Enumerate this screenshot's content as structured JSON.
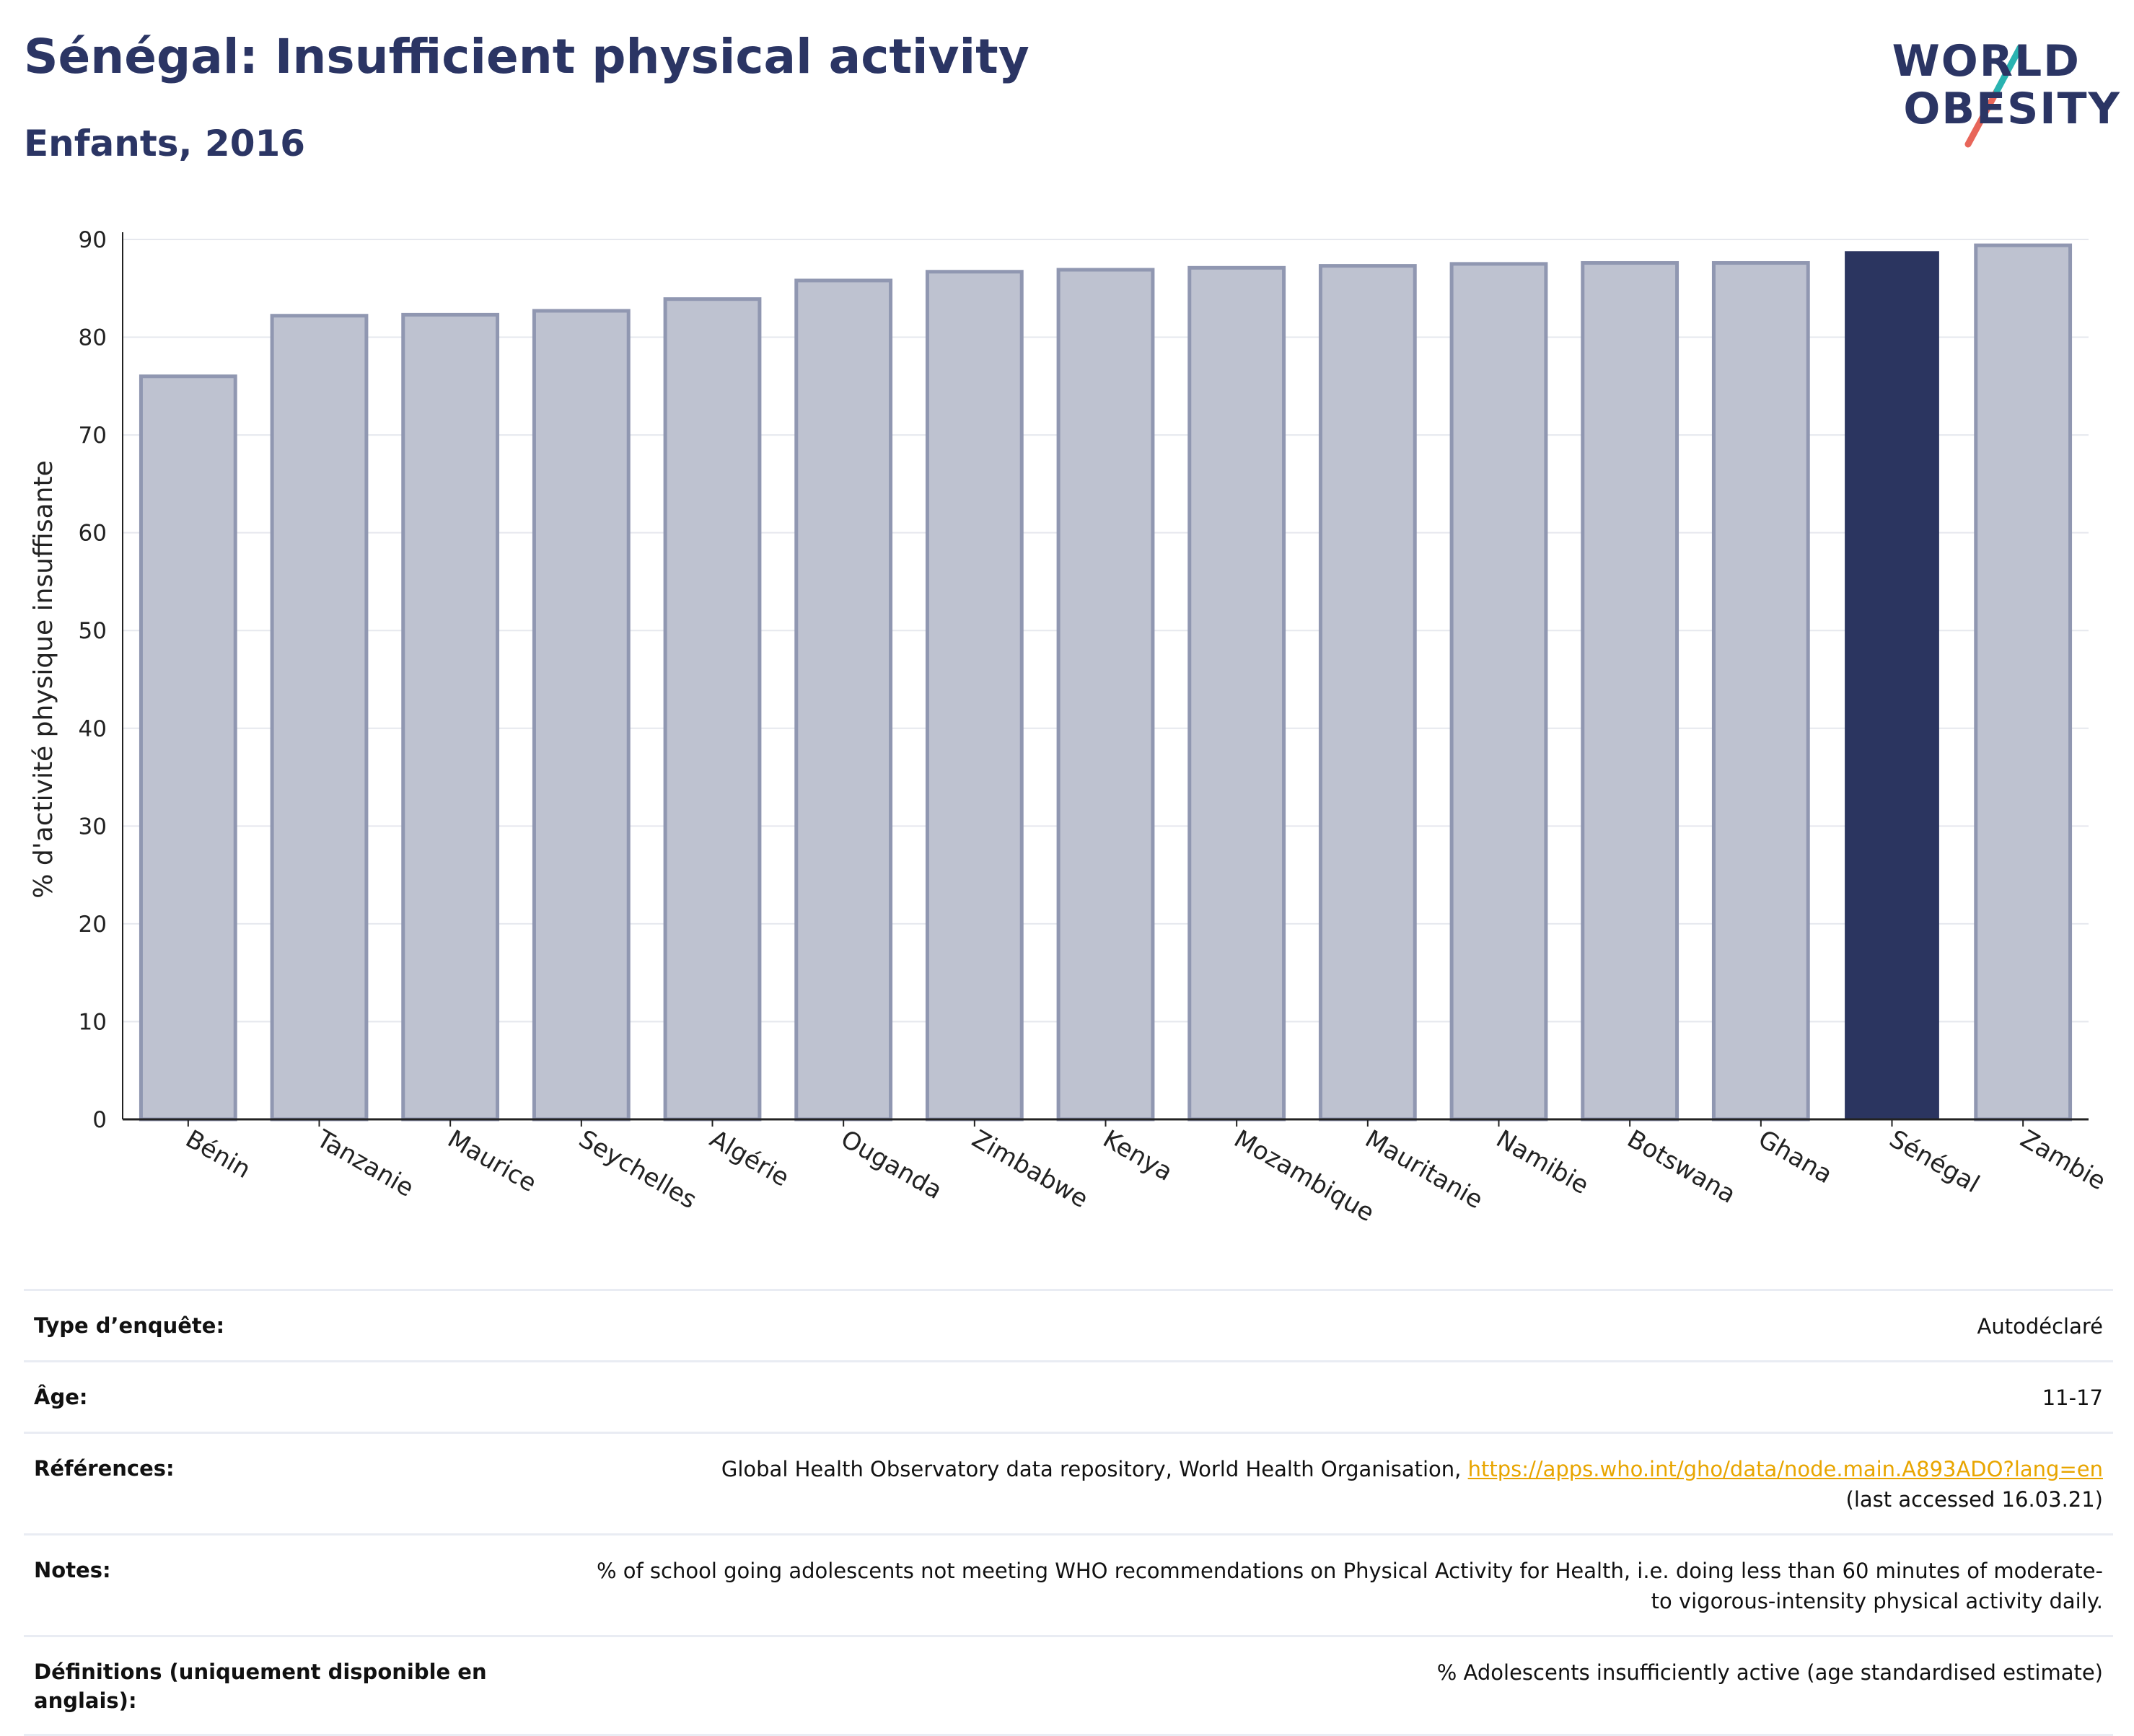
{
  "header": {
    "title": "Sénégal: Insufficient physical activity",
    "subtitle": "Enfants, 2016"
  },
  "logo": {
    "line1": "WORLD",
    "line2": "OBESITY",
    "colors": {
      "text": "#2b3564",
      "slash_teal": "#2ab3b1",
      "slash_coral": "#e8665a"
    }
  },
  "colors": {
    "bar": "#bec2d0",
    "bar_border": "#9097b1",
    "highlight": "#2b3560",
    "grid": "#e6e8ee",
    "axis": "#222222"
  },
  "chart_data": {
    "type": "bar",
    "categories": [
      "Bénin",
      "Tanzanie",
      "Maurice",
      "Seychelles",
      "Algérie",
      "Ouganda",
      "Zimbabwe",
      "Kenya",
      "Mozambique",
      "Mauritanie",
      "Namibie",
      "Botswana",
      "Ghana",
      "Sénégal",
      "Zambie"
    ],
    "values": [
      76.0,
      82.2,
      82.3,
      82.7,
      83.9,
      85.8,
      86.7,
      86.9,
      87.1,
      87.3,
      87.5,
      87.6,
      87.6,
      88.8,
      89.4
    ],
    "highlight": "Sénégal",
    "ylabel": "% d'activité physique insuffisante",
    "ylim": [
      0,
      90
    ],
    "yticks": [
      0,
      10,
      20,
      30,
      40,
      50,
      60,
      70,
      80,
      90
    ],
    "grid": true,
    "legend": "none"
  },
  "info": [
    {
      "label": "Type d’enquête:",
      "value": "Autodéclaré"
    },
    {
      "label": "Âge:",
      "value": "11-17"
    },
    {
      "label": "Références:",
      "value": "Global Health Observatory data repository, World Health Organisation, ",
      "link": "https://apps.who.int/gho/data/node.main.A893ADO?lang=en",
      "after": "(last accessed 16.03.21)"
    },
    {
      "label": "Notes:",
      "value": "% of school going adolescents not meeting WHO recommendations on Physical Activity for Health, i.e. doing less than 60 minutes of moderate- to vigorous-intensity physical activity daily."
    },
    {
      "label": "Définitions (uniquement disponible en anglais):",
      "value": "% Adolescents insufficiently active (age standardised estimate)"
    }
  ]
}
